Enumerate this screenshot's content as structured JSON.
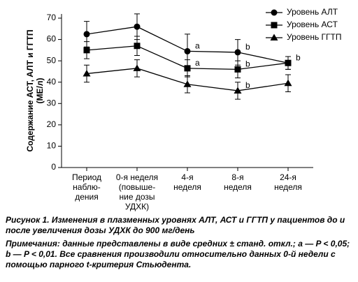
{
  "chart_data": {
    "type": "line",
    "y_label": [
      "Содержание АСТ, АЛТ и ГГТП",
      "(МЕ/л)"
    ],
    "categories": [
      [
        "Период",
        "наблю-",
        "дения"
      ],
      [
        "0-я неделя",
        "(повыше-",
        "ние дозы",
        "УДХК)"
      ],
      [
        "4-я",
        "неделя"
      ],
      [
        "8-я",
        "неделя"
      ],
      [
        "24-я",
        "неделя"
      ]
    ],
    "series": [
      {
        "name": "Уровень АЛТ",
        "color": "#000000",
        "marker": "circle",
        "values": [
          62.5,
          66,
          54.5,
          54,
          49
        ],
        "errors": [
          6,
          6,
          8,
          6,
          3
        ],
        "annotations": [
          null,
          null,
          "a",
          "b",
          "b"
        ]
      },
      {
        "name": "Уровень АСТ",
        "color": "#000000",
        "marker": "square",
        "values": [
          55,
          57,
          46.5,
          46,
          49
        ],
        "errors": [
          4,
          4.5,
          4,
          4,
          3
        ],
        "annotations": [
          null,
          null,
          "a",
          "b",
          null
        ]
      },
      {
        "name": "Уровень ГГТП",
        "color": "#000000",
        "marker": "triangle",
        "values": [
          44,
          46.5,
          39,
          36,
          39.5
        ],
        "errors": [
          4,
          4,
          4,
          4,
          4
        ],
        "annotations": [
          null,
          null,
          null,
          "b",
          null
        ]
      }
    ],
    "ylim": [
      0,
      70
    ],
    "yticks": [
      0,
      10,
      20,
      30,
      40,
      50,
      60,
      70
    ],
    "grid": false,
    "legend": "top-right"
  },
  "caption": {
    "title": "Рисунок 1. Изменения в плазменных уровнях АЛТ, АСТ и ГГТП у пациентов до и после увеличения дозы УДХК до 900 мг/день",
    "note": "Примечания: данные представлены в виде средних ± станд. откл.; a — P < 0,05; b — P < 0,01. Все сравнения производили относительно данных 0-й недели с помощью парного t-критерия Стьюдента."
  }
}
